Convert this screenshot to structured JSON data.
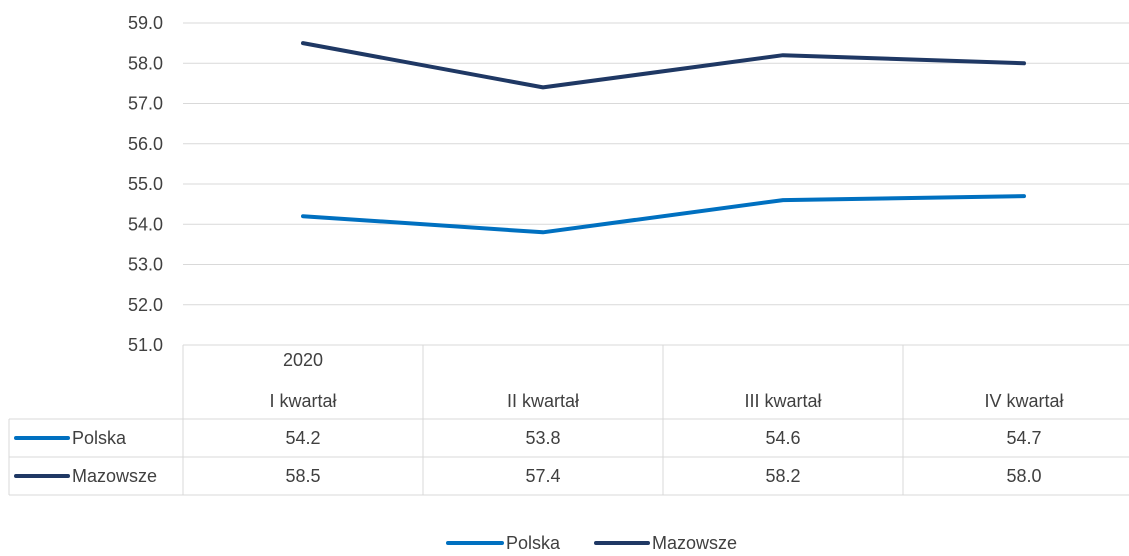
{
  "chart_data": {
    "type": "line",
    "categories": [
      "I kwartał",
      "II kwartał",
      "III kwartał",
      "IV kwartał"
    ],
    "category_group": "2020",
    "series": [
      {
        "name": "Polska",
        "values": [
          54.2,
          53.8,
          54.6,
          54.7
        ],
        "color": "#0070C0"
      },
      {
        "name": "Mazowsze",
        "values": [
          58.5,
          57.4,
          58.2,
          58.0
        ],
        "color": "#1F3864"
      }
    ],
    "ylim": [
      51.0,
      59.0
    ],
    "yticks": [
      "51.0",
      "52.0",
      "53.0",
      "54.0",
      "55.0",
      "56.0",
      "57.0",
      "58.0",
      "59.0"
    ],
    "data_table": {
      "rows": [
        {
          "label": "Polska",
          "values": [
            "54.2",
            "53.8",
            "54.6",
            "54.7"
          ]
        },
        {
          "label": "Mazowsze",
          "values": [
            "58.5",
            "57.4",
            "58.2",
            "58.0"
          ]
        }
      ]
    },
    "legend": [
      "Polska",
      "Mazowsze"
    ],
    "legend_position": "bottom",
    "grid": true
  }
}
